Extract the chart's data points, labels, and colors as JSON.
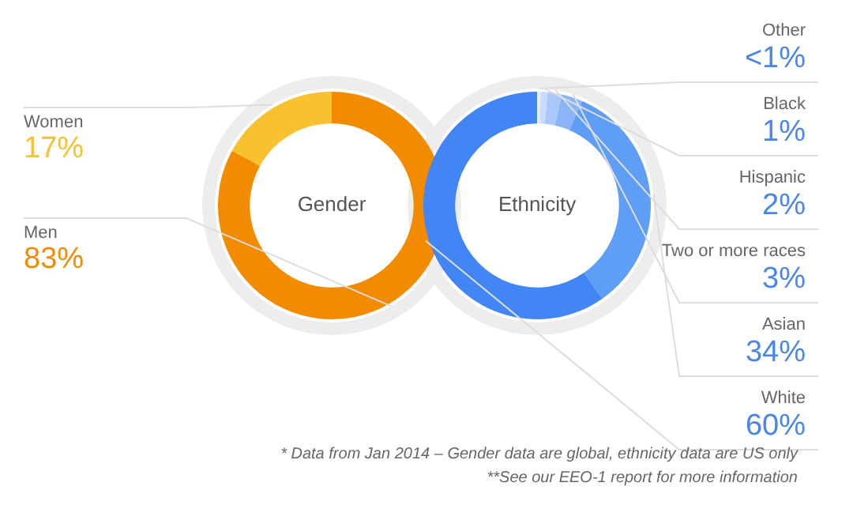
{
  "chart_data": [
    {
      "type": "donut",
      "title": "Gender",
      "categories": [
        "Women",
        "Men"
      ],
      "values": [
        17,
        83
      ],
      "colors": [
        "#f7c12f",
        "#f28b00"
      ],
      "value_labels": [
        "17%",
        "83%"
      ]
    },
    {
      "type": "donut",
      "title": "Ethnicity",
      "categories": [
        "Other",
        "Black",
        "Hispanic",
        "Two or more races",
        "Asian",
        "White"
      ],
      "values": [
        0.5,
        1,
        2,
        3,
        34,
        60
      ],
      "value_labels": [
        "<1%",
        "1%",
        "2%",
        "3%",
        "34%",
        "60%"
      ],
      "colors": [
        "#e3edfd",
        "#c7dbfc",
        "#a9c8fa",
        "#8cb5f8",
        "#5f9ef6",
        "#4285f4"
      ],
      "annotations": [
        "* Data from Jan 2014 – Gender data are global, ethnicity data are US only",
        "**See our EEO-1 report for more information"
      ]
    }
  ]
}
